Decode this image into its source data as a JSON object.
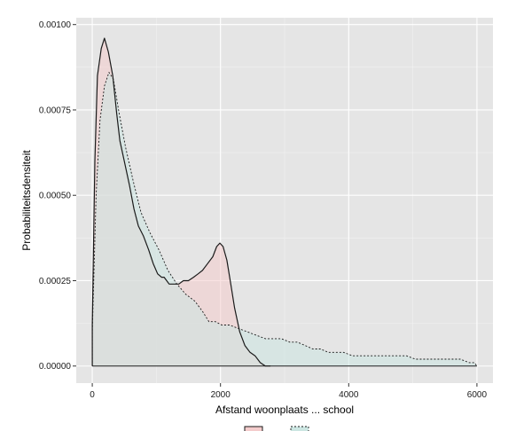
{
  "chart_data": {
    "type": "area",
    "xlabel": "Afstand woonplaats ... school",
    "ylabel": "Probabiliteitsdensiteit",
    "xlim": [
      -250,
      6250
    ],
    "ylim": [
      -5e-05,
      0.00102
    ],
    "x_ticks": [
      0,
      2000,
      4000,
      6000
    ],
    "x_tick_labels": [
      "0",
      "2000",
      "4000",
      "6000"
    ],
    "y_ticks": [
      0,
      0.00025,
      0.0005,
      0.00075,
      0.001
    ],
    "y_tick_labels": [
      "0.00000",
      "0.00025",
      "0.00050",
      "0.00075",
      "0.00100"
    ],
    "grid": true,
    "panel_background": "#e5e5e5",
    "legend_position": "bottom",
    "series": [
      {
        "line_style": "solid",
        "fill": "#f4cccc",
        "line_color": "#1a1a1a",
        "points": [
          [
            0,
            0.00012
          ],
          [
            40,
            0.0006
          ],
          [
            80,
            0.00085
          ],
          [
            140,
            0.00093
          ],
          [
            190,
            0.00096
          ],
          [
            250,
            0.00092
          ],
          [
            320,
            0.00085
          ],
          [
            380,
            0.00074
          ],
          [
            430,
            0.00066
          ],
          [
            500,
            0.0006
          ],
          [
            580,
            0.00053
          ],
          [
            650,
            0.00046
          ],
          [
            720,
            0.00041
          ],
          [
            800,
            0.00038
          ],
          [
            880,
            0.00034
          ],
          [
            950,
            0.0003
          ],
          [
            1020,
            0.00027
          ],
          [
            1080,
            0.00026
          ],
          [
            1120,
            0.00026
          ],
          [
            1160,
            0.00025
          ],
          [
            1200,
            0.00024
          ],
          [
            1280,
            0.00024
          ],
          [
            1350,
            0.00024
          ],
          [
            1420,
            0.00025
          ],
          [
            1500,
            0.00025
          ],
          [
            1580,
            0.00026
          ],
          [
            1650,
            0.00027
          ],
          [
            1720,
            0.00028
          ],
          [
            1800,
            0.0003
          ],
          [
            1880,
            0.00032
          ],
          [
            1940,
            0.00035
          ],
          [
            1990,
            0.00036
          ],
          [
            2040,
            0.00035
          ],
          [
            2100,
            0.00031
          ],
          [
            2160,
            0.00024
          ],
          [
            2220,
            0.00017
          ],
          [
            2300,
            0.0001
          ],
          [
            2380,
            6e-05
          ],
          [
            2460,
            4e-05
          ],
          [
            2540,
            3e-05
          ],
          [
            2620,
            1e-05
          ],
          [
            2700,
            0.0
          ],
          [
            2780,
            0.0
          ]
        ]
      },
      {
        "line_style": "dotted",
        "fill": "#cce6e2",
        "line_color": "#1a1a1a",
        "points": [
          [
            0,
            0.0001
          ],
          [
            60,
            0.0005
          ],
          [
            120,
            0.00072
          ],
          [
            190,
            0.00082
          ],
          [
            260,
            0.00086
          ],
          [
            330,
            0.00084
          ],
          [
            420,
            0.00074
          ],
          [
            520,
            0.00064
          ],
          [
            640,
            0.00054
          ],
          [
            760,
            0.00045
          ],
          [
            900,
            0.00039
          ],
          [
            1040,
            0.00034
          ],
          [
            1180,
            0.00028
          ],
          [
            1320,
            0.00024
          ],
          [
            1460,
            0.00021
          ],
          [
            1600,
            0.00019
          ],
          [
            1720,
            0.00016
          ],
          [
            1820,
            0.00013
          ],
          [
            1920,
            0.00013
          ],
          [
            2020,
            0.00012
          ],
          [
            2140,
            0.00012
          ],
          [
            2280,
            0.00011
          ],
          [
            2420,
            0.0001
          ],
          [
            2560,
            9e-05
          ],
          [
            2700,
            8e-05
          ],
          [
            2820,
            8e-05
          ],
          [
            2950,
            8e-05
          ],
          [
            3080,
            7e-05
          ],
          [
            3200,
            7e-05
          ],
          [
            3320,
            6e-05
          ],
          [
            3440,
            5e-05
          ],
          [
            3560,
            5e-05
          ],
          [
            3680,
            4e-05
          ],
          [
            3800,
            4e-05
          ],
          [
            3920,
            4e-05
          ],
          [
            4060,
            3e-05
          ],
          [
            4200,
            3e-05
          ],
          [
            4340,
            3e-05
          ],
          [
            4480,
            3e-05
          ],
          [
            4620,
            3e-05
          ],
          [
            4760,
            3e-05
          ],
          [
            4900,
            3e-05
          ],
          [
            5040,
            2e-05
          ],
          [
            5180,
            2e-05
          ],
          [
            5320,
            2e-05
          ],
          [
            5460,
            2e-05
          ],
          [
            5600,
            2e-05
          ],
          [
            5740,
            2e-05
          ],
          [
            5880,
            1e-05
          ],
          [
            5960,
            1e-05
          ],
          [
            6000,
            0.0
          ]
        ]
      }
    ]
  }
}
